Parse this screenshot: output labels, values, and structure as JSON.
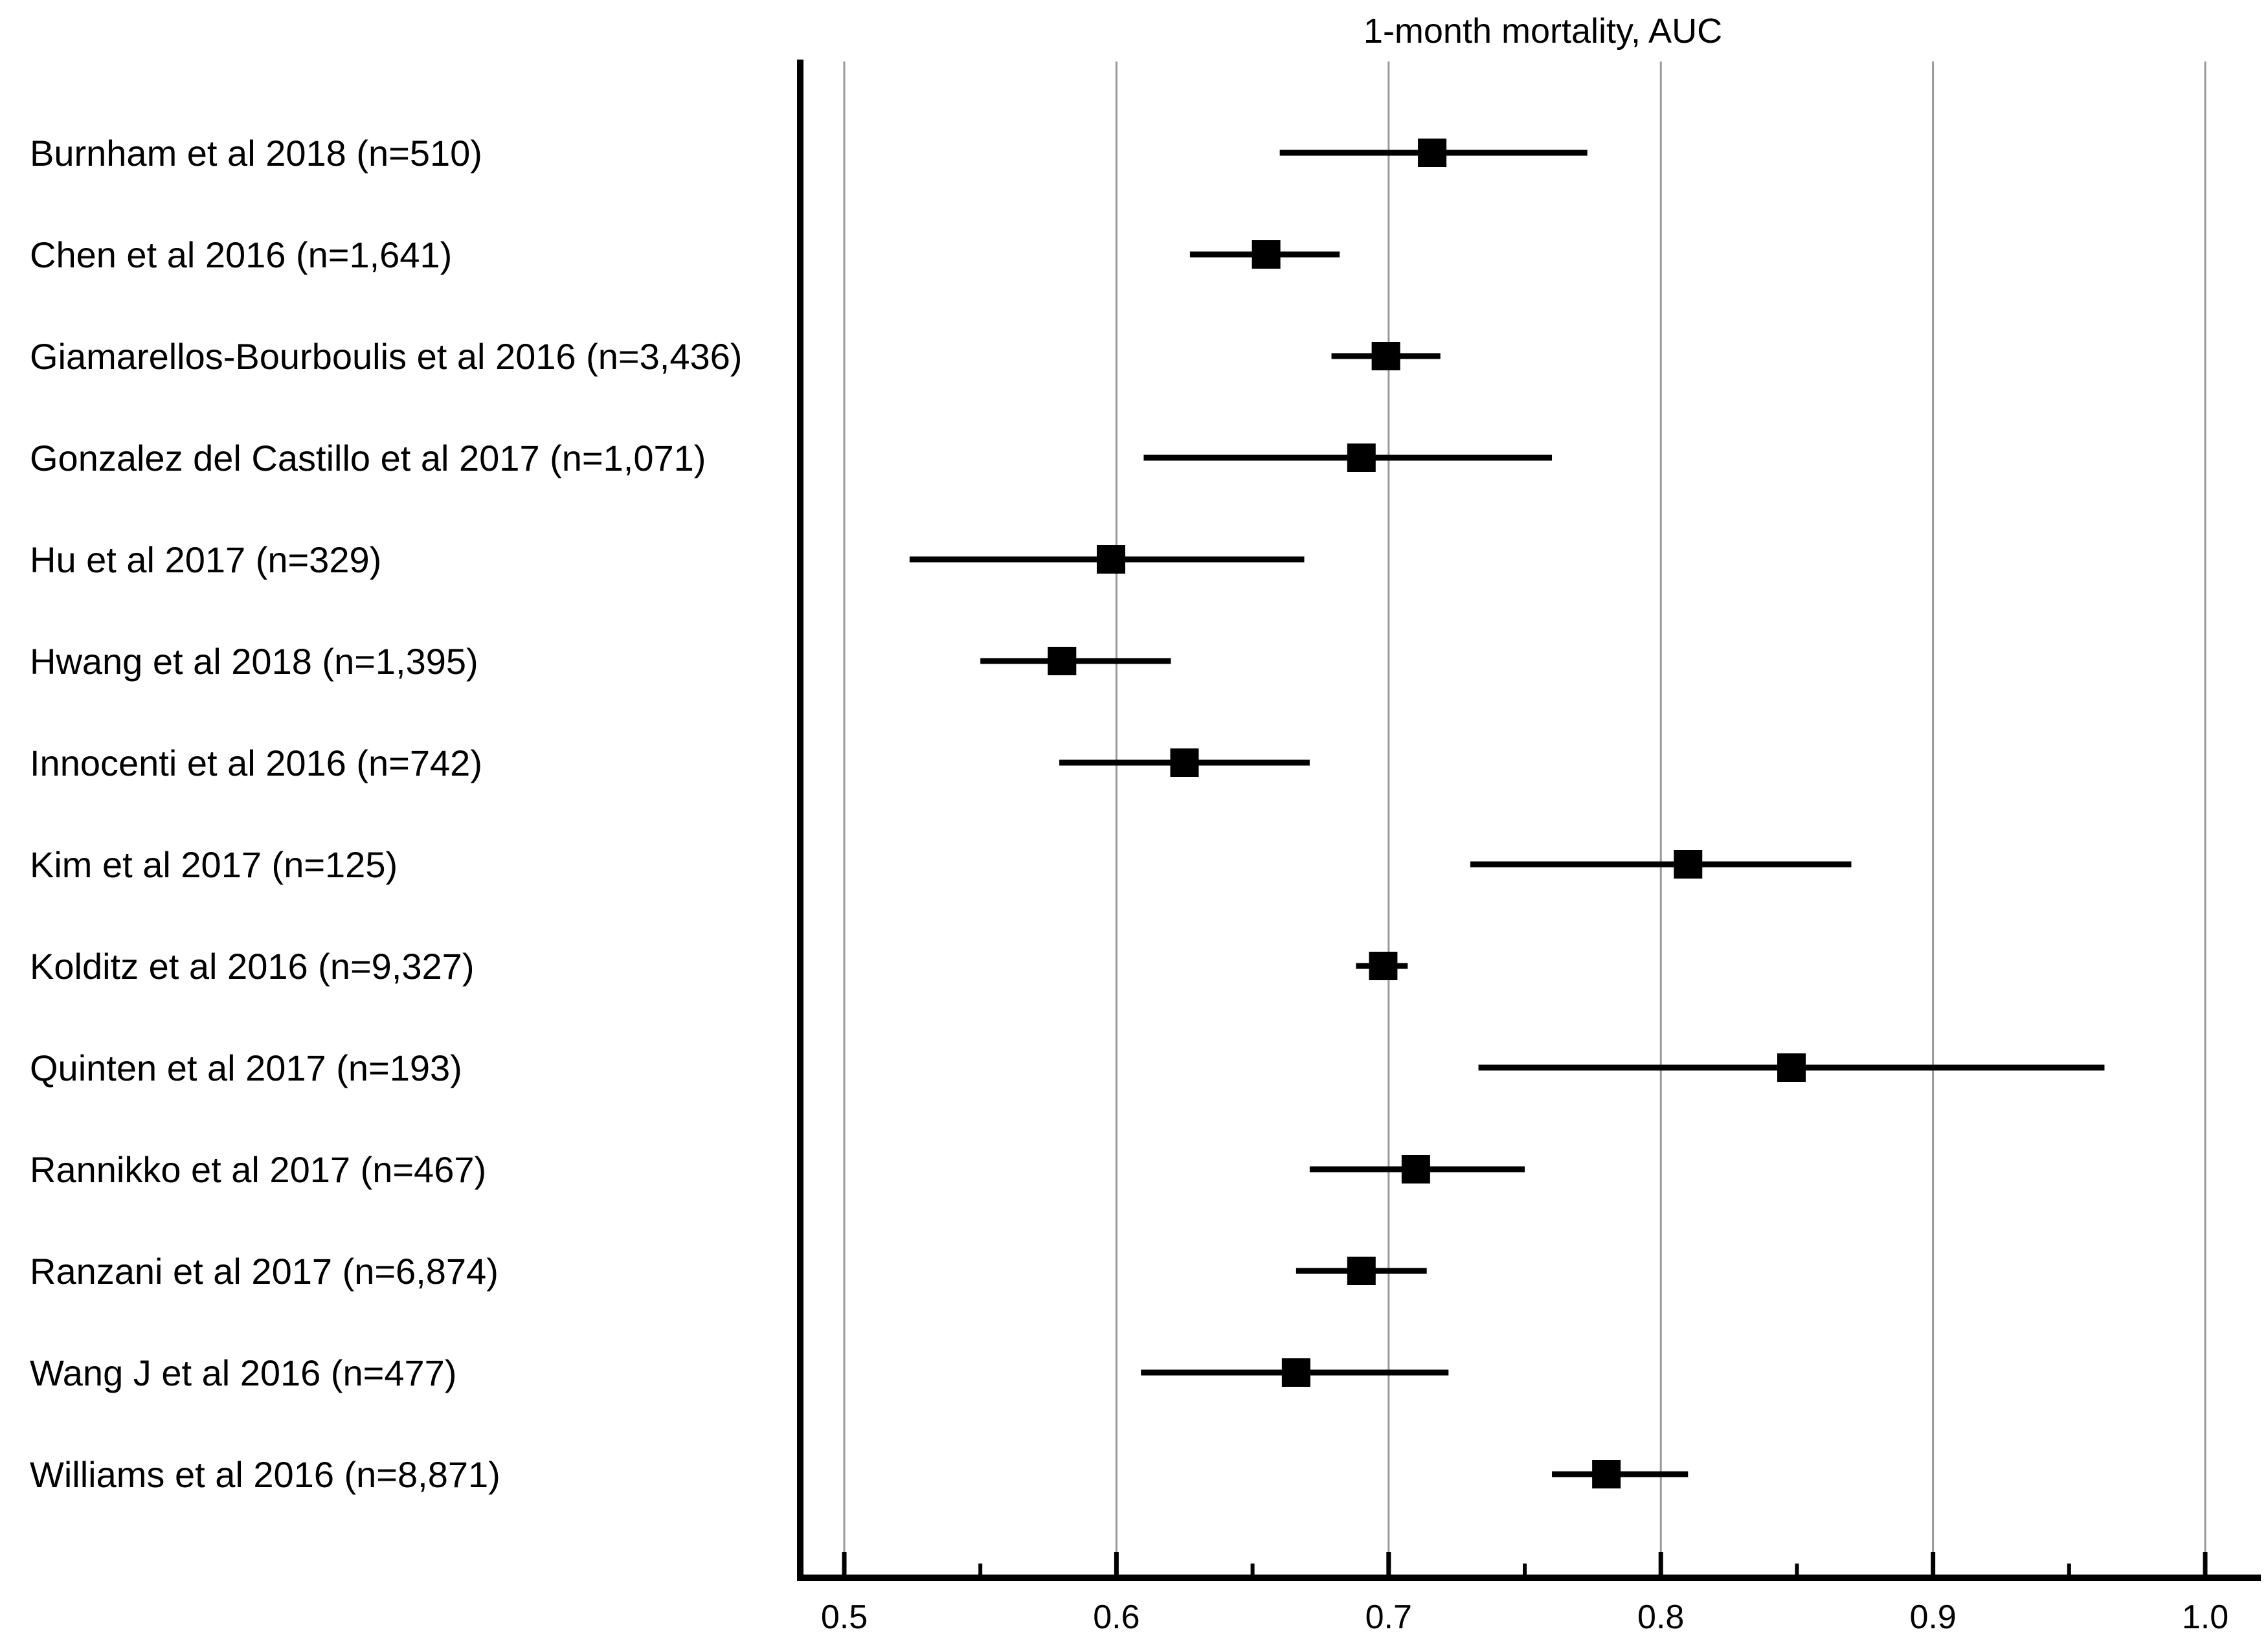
{
  "chart_data": {
    "type": "forest",
    "title": "1-month mortality, AUC",
    "xlim": [
      0.5,
      1.0
    ],
    "x_ticks": [
      "0.5",
      "0.6",
      "0.7",
      "0.8",
      "0.9",
      "1.0"
    ],
    "x_minor_ticks": [
      0.55,
      0.65,
      0.75,
      0.85,
      0.95
    ],
    "grid": "vertical",
    "studies": [
      {
        "label": "Burnham et al 2018 (n=510)",
        "auc": 0.716,
        "lower": 0.66,
        "upper": 0.773
      },
      {
        "label": "Chen et al 2016 (n=1,641)",
        "auc": 0.655,
        "lower": 0.627,
        "upper": 0.682
      },
      {
        "label": "Giamarellos-Bourboulis et al 2016 (n=3,436)",
        "auc": 0.699,
        "lower": 0.679,
        "upper": 0.719
      },
      {
        "label": "Gonzalez del Castillo et al 2017 (n=1,071)",
        "auc": 0.69,
        "lower": 0.61,
        "upper": 0.76
      },
      {
        "label": "Hu et al 2017 (n=329)",
        "auc": 0.598,
        "lower": 0.524,
        "upper": 0.669
      },
      {
        "label": "Hwang et al 2018 (n=1,395)",
        "auc": 0.58,
        "lower": 0.55,
        "upper": 0.62
      },
      {
        "label": "Innocenti et al 2016 (n=742)",
        "auc": 0.625,
        "lower": 0.579,
        "upper": 0.671
      },
      {
        "label": "Kim et al 2017 (n=125)",
        "auc": 0.81,
        "lower": 0.73,
        "upper": 0.87
      },
      {
        "label": "Kolditz et al 2016 (n=9,327)",
        "auc": 0.698,
        "lower": 0.688,
        "upper": 0.707
      },
      {
        "label": "Quinten et al 2017 (n=193)",
        "auc": 0.848,
        "lower": 0.733,
        "upper": 0.963
      },
      {
        "label": "Rannikko et al 2017 (n=467)",
        "auc": 0.71,
        "lower": 0.671,
        "upper": 0.75
      },
      {
        "label": "Ranzani et al 2017 (n=6,874)",
        "auc": 0.69,
        "lower": 0.666,
        "upper": 0.714
      },
      {
        "label": "Wang J et al 2016 (n=477)",
        "auc": 0.666,
        "lower": 0.609,
        "upper": 0.722
      },
      {
        "label": "Williams et al 2016 (n=8,871)",
        "auc": 0.78,
        "lower": 0.76,
        "upper": 0.81
      }
    ]
  }
}
